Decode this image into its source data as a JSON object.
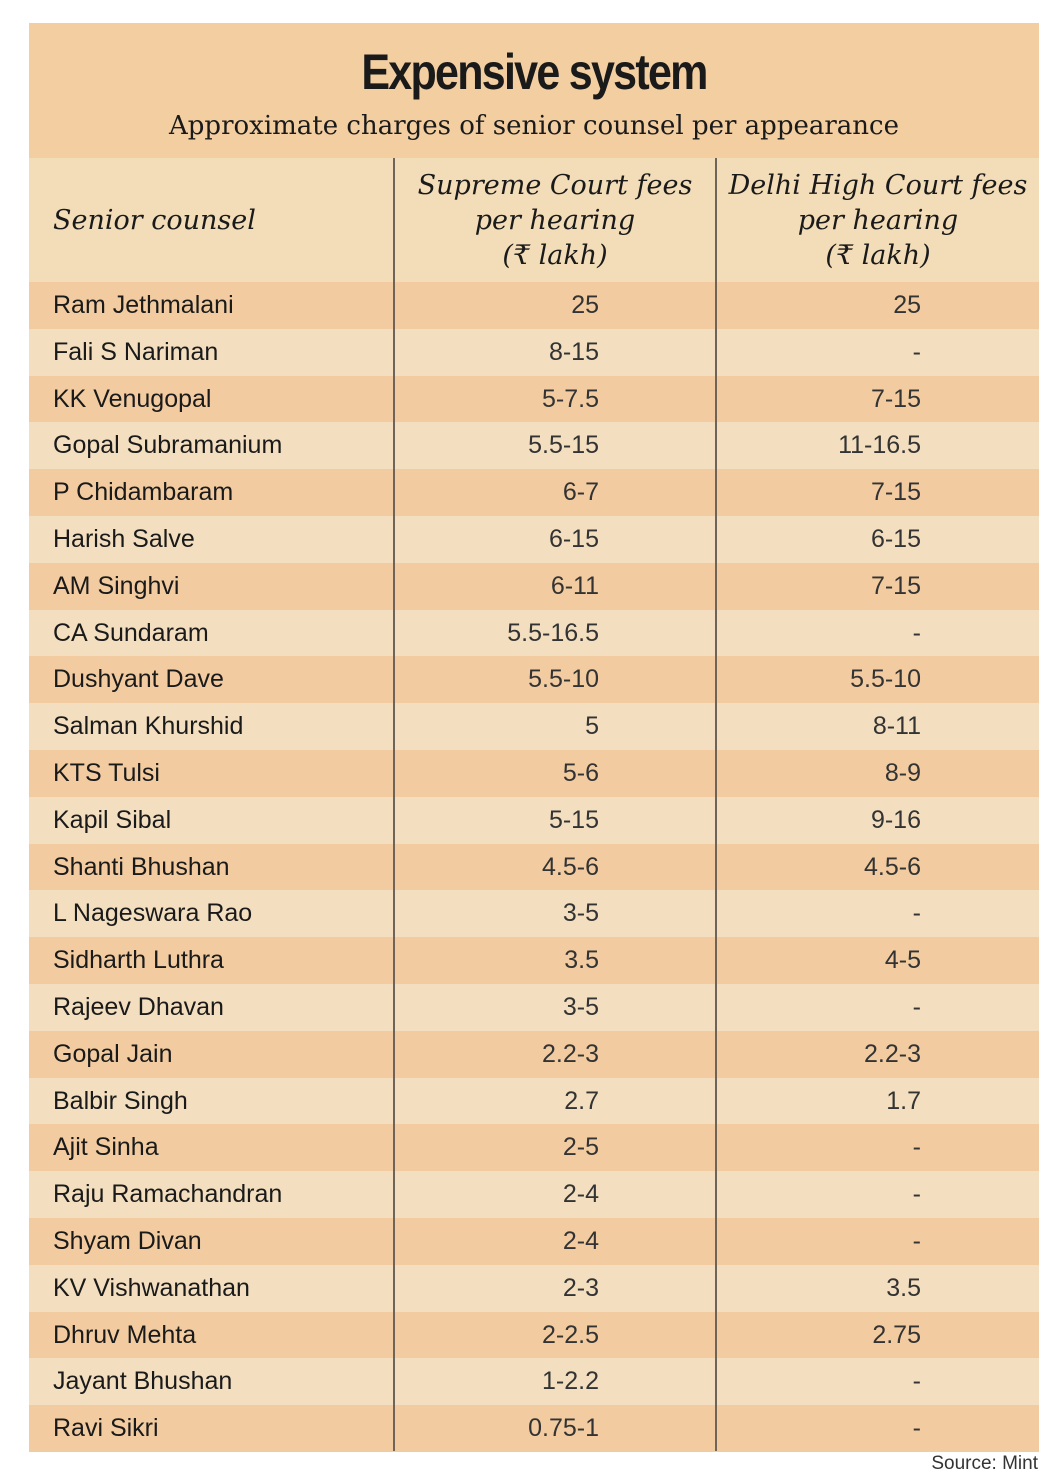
{
  "chart_data": {
    "type": "table",
    "title": "Expensive system",
    "subtitle": "Approximate charges of senior counsel per appearance",
    "columns": [
      "Senior counsel",
      [
        "Supreme Court fees",
        "per hearing",
        "(₹ lakh)"
      ],
      [
        "Delhi High Court fees",
        "per hearing",
        "(₹ lakh)"
      ]
    ],
    "rows": [
      {
        "name": "Ram Jethmalani",
        "sc": "25",
        "hc": "25"
      },
      {
        "name": "Fali S Nariman",
        "sc": "8-15",
        "hc": "-"
      },
      {
        "name": "KK Venugopal",
        "sc": "5-7.5",
        "hc": "7-15"
      },
      {
        "name": "Gopal Subramanium",
        "sc": "5.5-15",
        "hc": "11-16.5"
      },
      {
        "name": "P Chidambaram",
        "sc": "6-7",
        "hc": "7-15"
      },
      {
        "name": "Harish Salve",
        "sc": "6-15",
        "hc": "6-15"
      },
      {
        "name": "AM Singhvi",
        "sc": "6-11",
        "hc": "7-15"
      },
      {
        "name": "CA Sundaram",
        "sc": "5.5-16.5",
        "hc": "-"
      },
      {
        "name": "Dushyant Dave",
        "sc": "5.5-10",
        "hc": "5.5-10"
      },
      {
        "name": "Salman Khurshid",
        "sc": "5",
        "hc": "8-11"
      },
      {
        "name": "KTS Tulsi",
        "sc": "5-6",
        "hc": "8-9"
      },
      {
        "name": "Kapil Sibal",
        "sc": "5-15",
        "hc": "9-16"
      },
      {
        "name": "Shanti Bhushan",
        "sc": "4.5-6",
        "hc": "4.5-6"
      },
      {
        "name": "L Nageswara Rao",
        "sc": "3-5",
        "hc": "-"
      },
      {
        "name": "Sidharth Luthra",
        "sc": "3.5",
        "hc": "4-5"
      },
      {
        "name": "Rajeev Dhavan",
        "sc": "3-5",
        "hc": "-"
      },
      {
        "name": "Gopal Jain",
        "sc": "2.2-3",
        "hc": "2.2-3"
      },
      {
        "name": "Balbir Singh",
        "sc": "2.7",
        "hc": "1.7"
      },
      {
        "name": "Ajit Sinha",
        "sc": "2-5",
        "hc": "-"
      },
      {
        "name": "Raju Ramachandran",
        "sc": "2-4",
        "hc": "-"
      },
      {
        "name": "Shyam Divan",
        "sc": "2-4",
        "hc": "-"
      },
      {
        "name": "KV Vishwanathan",
        "sc": "2-3",
        "hc": "3.5"
      },
      {
        "name": "Dhruv Mehta",
        "sc": "2-2.5",
        "hc": "2.75"
      },
      {
        "name": "Jayant Bhushan",
        "sc": "1-2.2",
        "hc": "-"
      },
      {
        "name": "Ravi Sikri",
        "sc": "0.75-1",
        "hc": "-"
      }
    ],
    "source": "Source: Mint"
  },
  "colors": {
    "title_band": "#f2cea1",
    "row_dark": "#f2cca0",
    "row_light": "#f3dfbf",
    "divider": "#6e6458"
  }
}
